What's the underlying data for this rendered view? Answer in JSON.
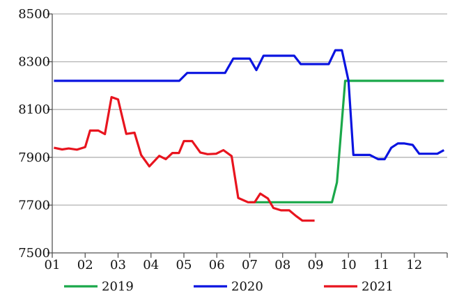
{
  "chart_data": {
    "type": "line",
    "title": "",
    "xlabel": "",
    "ylabel": "",
    "x_tick_labels": [
      "01",
      "02",
      "03",
      "04",
      "05",
      "06",
      "07",
      "08",
      "09",
      "10",
      "11",
      "12"
    ],
    "ylim": [
      7500,
      8500
    ],
    "y_ticks": [
      7500,
      7700,
      7900,
      8100,
      8300,
      8500
    ],
    "grid": "horizontal",
    "legend_position": "bottom",
    "series": [
      {
        "name": "2019",
        "color": "#1aa84a",
        "x": [
          7.0,
          7.5,
          8.0,
          8.5,
          9.0,
          9.4,
          9.5,
          9.65,
          9.9,
          10.0,
          10.5,
          11.0,
          11.5,
          12.0,
          12.5,
          12.9
        ],
        "values": [
          7712,
          7712,
          7712,
          7712,
          7712,
          7712,
          7712,
          7795,
          8220,
          8220,
          8220,
          8220,
          8220,
          8220,
          8220,
          8220
        ]
      },
      {
        "name": "2020",
        "color": "#0a14e0",
        "x": [
          1.05,
          1.5,
          2.0,
          2.5,
          3.0,
          3.5,
          4.0,
          4.5,
          4.86,
          5.1,
          5.5,
          5.9,
          6.25,
          6.5,
          6.75,
          7.0,
          7.2,
          7.42,
          7.8,
          8.1,
          8.35,
          8.55,
          8.8,
          9.0,
          9.4,
          9.6,
          9.8,
          10.0,
          10.15,
          10.4,
          10.65,
          10.9,
          11.1,
          11.3,
          11.5,
          11.7,
          11.95,
          12.15,
          12.4,
          12.7,
          12.9
        ],
        "values": [
          8220,
          8220,
          8220,
          8220,
          8220,
          8220,
          8220,
          8220,
          8220,
          8253,
          8253,
          8253,
          8253,
          8313,
          8313,
          8313,
          8265,
          8325,
          8325,
          8325,
          8325,
          8290,
          8290,
          8290,
          8290,
          8348,
          8348,
          8220,
          7910,
          7910,
          7910,
          7892,
          7892,
          7940,
          7958,
          7958,
          7952,
          7915,
          7915,
          7915,
          7930
        ]
      },
      {
        "name": "2021",
        "color": "#e8141e",
        "x": [
          1.05,
          1.3,
          1.5,
          1.75,
          2.0,
          2.15,
          2.4,
          2.6,
          2.8,
          3.0,
          3.25,
          3.5,
          3.7,
          3.95,
          4.25,
          4.45,
          4.65,
          4.85,
          5.0,
          5.25,
          5.5,
          5.72,
          5.98,
          6.2,
          6.45,
          6.65,
          6.95,
          7.15,
          7.32,
          7.55,
          7.72,
          7.95,
          8.2,
          8.4,
          8.6,
          8.8,
          8.97
        ],
        "values": [
          7940,
          7933,
          7937,
          7932,
          7943,
          8012,
          8012,
          7997,
          8152,
          8142,
          7998,
          8003,
          7910,
          7862,
          7906,
          7892,
          7918,
          7918,
          7968,
          7968,
          7920,
          7913,
          7915,
          7930,
          7905,
          7730,
          7712,
          7712,
          7748,
          7728,
          7688,
          7678,
          7678,
          7655,
          7635,
          7635,
          7635
        ]
      }
    ]
  }
}
